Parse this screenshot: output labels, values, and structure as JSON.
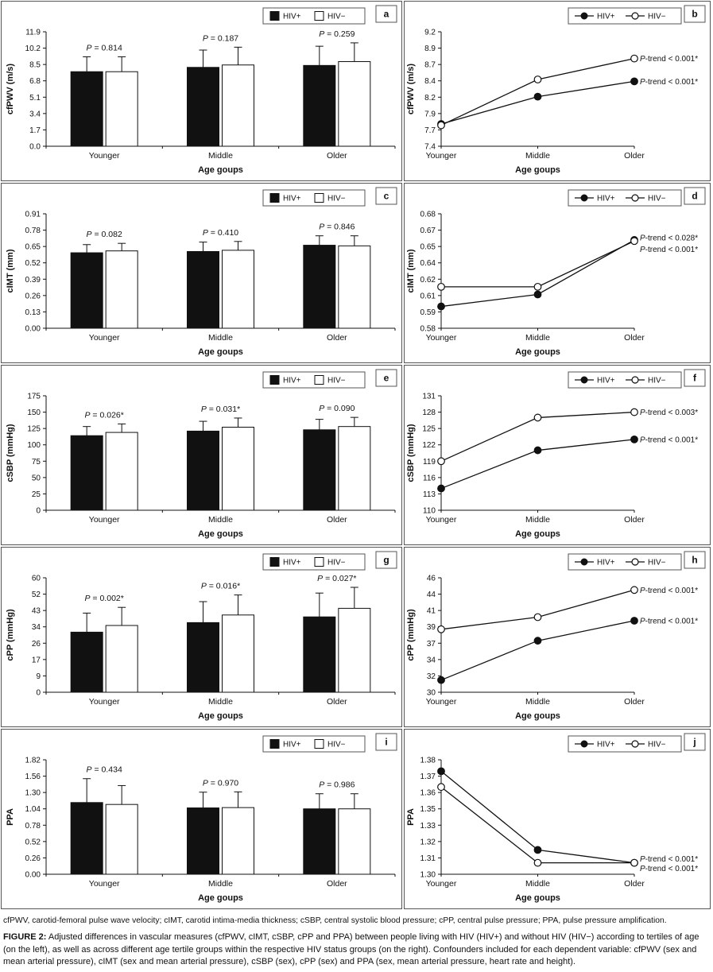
{
  "shared": {
    "categories": [
      "Younger",
      "Middle",
      "Older"
    ],
    "xlabel": "Age goups",
    "legend": [
      "HIV+",
      "HIV−"
    ]
  },
  "chart_data": [
    {
      "panel": "a",
      "type": "bar",
      "ylabel": "cfPWV (m/s)",
      "ymin": 0,
      "ymax": 11.9,
      "ytick_labels": [
        "0.0",
        "1.7",
        "3.4",
        "5.1",
        "6.8",
        "8.5",
        "10.2",
        "11.9"
      ],
      "series": [
        {
          "name": "HIV+",
          "marker": "filled",
          "values": [
            7.75,
            8.2,
            8.4
          ],
          "errors": [
            1.55,
            1.8,
            2.0
          ]
        },
        {
          "name": "HIV−",
          "marker": "open",
          "values": [
            7.75,
            8.45,
            8.8
          ],
          "errors": [
            1.55,
            1.85,
            1.95
          ]
        }
      ],
      "p_labels": [
        "P = 0.814",
        "P = 0.187",
        "P = 0.259"
      ]
    },
    {
      "panel": "b",
      "type": "line",
      "ylabel": "cfPWV (m/s)",
      "ymin": 7.4,
      "ymax": 9.2,
      "ytick_labels": [
        "7.4",
        "7.7",
        "7.9",
        "8.2",
        "8.4",
        "8.7",
        "8.9",
        "9.2"
      ],
      "series": [
        {
          "name": "HIV+",
          "marker": "filled",
          "values": [
            7.75,
            8.18,
            8.42
          ],
          "trend_label": "P-trend < 0.001*",
          "label_dy": 0
        },
        {
          "name": "HIV−",
          "marker": "open",
          "values": [
            7.73,
            8.45,
            8.78
          ],
          "trend_label": "P-trend < 0.001*",
          "label_dy": 0
        }
      ]
    },
    {
      "panel": "c",
      "type": "bar",
      "ylabel": "cIMT (mm)",
      "ymin": 0,
      "ymax": 0.91,
      "ytick_labels": [
        "0.00",
        "0.13",
        "0.26",
        "0.39",
        "0.52",
        "0.65",
        "0.78",
        "0.91"
      ],
      "series": [
        {
          "name": "HIV+",
          "marker": "filled",
          "values": [
            0.6,
            0.61,
            0.66
          ],
          "errors": [
            0.065,
            0.075,
            0.075
          ]
        },
        {
          "name": "HIV−",
          "marker": "open",
          "values": [
            0.615,
            0.62,
            0.655
          ],
          "errors": [
            0.06,
            0.07,
            0.08
          ]
        }
      ],
      "p_labels": [
        "P = 0.082",
        "P = 0.410",
        "P = 0.846"
      ]
    },
    {
      "panel": "d",
      "type": "line",
      "ylabel": "cIMT (mm)",
      "ymin": 0.58,
      "ymax": 0.685,
      "ytick_labels": [
        "0.58",
        "0.59",
        "0.61",
        "0.62",
        "0.64",
        "0.65",
        "0.67",
        "0.68"
      ],
      "series": [
        {
          "name": "HIV+",
          "marker": "filled",
          "values": [
            0.6,
            0.611,
            0.661
          ],
          "trend_label": "P-trend < 0.028*",
          "label_dy": -3
        },
        {
          "name": "HIV−",
          "marker": "open",
          "values": [
            0.618,
            0.618,
            0.66
          ],
          "trend_label": "P-trend < 0.001*",
          "label_dy": 10
        }
      ]
    },
    {
      "panel": "e",
      "type": "bar",
      "ylabel": "cSBP (mmHg)",
      "ymin": 0,
      "ymax": 175,
      "ytick_labels": [
        "0",
        "25",
        "50",
        "75",
        "100",
        "125",
        "150",
        "175"
      ],
      "series": [
        {
          "name": "HIV+",
          "marker": "filled",
          "values": [
            114,
            121,
            123
          ],
          "errors": [
            14,
            15,
            16
          ]
        },
        {
          "name": "HIV−",
          "marker": "open",
          "values": [
            119,
            127,
            128
          ],
          "errors": [
            13,
            14,
            14
          ]
        }
      ],
      "p_labels": [
        "P = 0.026*",
        "P = 0.031*",
        "P = 0.090"
      ]
    },
    {
      "panel": "f",
      "type": "line",
      "ylabel": "cSBP (mmHg)",
      "ymin": 110,
      "ymax": 131,
      "ytick_labels": [
        "110",
        "113",
        "116",
        "119",
        "122",
        "125",
        "128",
        "131"
      ],
      "series": [
        {
          "name": "HIV+",
          "marker": "filled",
          "values": [
            114,
            121,
            123
          ],
          "trend_label": "P-trend < 0.001*",
          "label_dy": 0
        },
        {
          "name": "HIV−",
          "marker": "open",
          "values": [
            119,
            127,
            128
          ],
          "trend_label": "P-trend < 0.003*",
          "label_dy": 0
        }
      ]
    },
    {
      "panel": "g",
      "type": "bar",
      "ylabel": "cPP (mmHg)",
      "ymin": 0,
      "ymax": 60,
      "ytick_labels": [
        "0",
        "9",
        "17",
        "26",
        "34",
        "43",
        "52",
        "60"
      ],
      "series": [
        {
          "name": "HIV+",
          "marker": "filled",
          "values": [
            31.5,
            36.5,
            39.5
          ],
          "errors": [
            10,
            11,
            12.5
          ]
        },
        {
          "name": "HIV−",
          "marker": "open",
          "values": [
            35,
            40.5,
            44
          ],
          "errors": [
            9.5,
            10.5,
            11
          ]
        }
      ],
      "p_labels": [
        "P = 0.002*",
        "P = 0.016*",
        "P = 0.027*"
      ]
    },
    {
      "panel": "h",
      "type": "line",
      "ylabel": "cPP (mmHg)",
      "ymin": 30,
      "ymax": 46,
      "ytick_labels": [
        "30",
        "32",
        "34",
        "37",
        "39",
        "41",
        "44",
        "46"
      ],
      "series": [
        {
          "name": "HIV+",
          "marker": "filled",
          "values": [
            31.7,
            37.2,
            40.0
          ],
          "trend_label": "P-trend < 0.001*",
          "label_dy": 0
        },
        {
          "name": "HIV−",
          "marker": "open",
          "values": [
            38.8,
            40.5,
            44.3
          ],
          "trend_label": "P-trend < 0.001*",
          "label_dy": 0
        }
      ]
    },
    {
      "panel": "i",
      "type": "bar",
      "ylabel": "PPA",
      "ymin": 0,
      "ymax": 1.82,
      "ytick_labels": [
        "0.00",
        "0.26",
        "0.52",
        "0.78",
        "1.04",
        "1.30",
        "1.56",
        "1.82"
      ],
      "series": [
        {
          "name": "HIV+",
          "marker": "filled",
          "values": [
            1.14,
            1.055,
            1.04
          ],
          "errors": [
            0.38,
            0.25,
            0.24
          ]
        },
        {
          "name": "HIV−",
          "marker": "open",
          "values": [
            1.11,
            1.06,
            1.04
          ],
          "errors": [
            0.3,
            0.25,
            0.24
          ]
        }
      ],
      "p_labels": [
        "P = 0.434",
        "P = 0.970",
        "P = 0.986"
      ]
    },
    {
      "panel": "j",
      "type": "line",
      "ylabel": "PPA",
      "ymin": 1.3,
      "ymax": 1.38,
      "ytick_labels": [
        "1.30",
        "1.31",
        "1.32",
        "1.33",
        "1.35",
        "1.36",
        "1.37",
        "1.38"
      ],
      "series": [
        {
          "name": "HIV+",
          "marker": "filled",
          "values": [
            1.372,
            1.317,
            1.308
          ],
          "trend_label": "P-trend < 0.001*",
          "label_dy": -5
        },
        {
          "name": "HIV−",
          "marker": "open",
          "values": [
            1.361,
            1.308,
            1.308
          ],
          "trend_label": "P-trend < 0.001*",
          "label_dy": 7
        }
      ]
    }
  ],
  "figure": {
    "abbreviations": "cfPWV, carotid-femoral pulse wave velocity; cIMT, carotid intima-media thickness; cSBP, central systolic blood pressure; cPP, central pulse pressure; PPA, pulse pressure amplification.",
    "caption_label": "FIGURE 2:",
    "caption_text": "Adjusted differences in vascular measures (cfPWV, cIMT, cSBP, cPP and PPA) between people living with HIV (HIV+) and without HIV (HIV−) according to tertiles of age (on the left), as well as across different age tertile groups within the respective HIV status groups (on the right). Confounders included for each dependent variable: cfPWV (sex and mean arterial pressure), cIMT (sex and mean arterial pressure), cSBP (sex), cPP (sex) and PPA (sex, mean arterial pressure, heart rate and height)."
  }
}
